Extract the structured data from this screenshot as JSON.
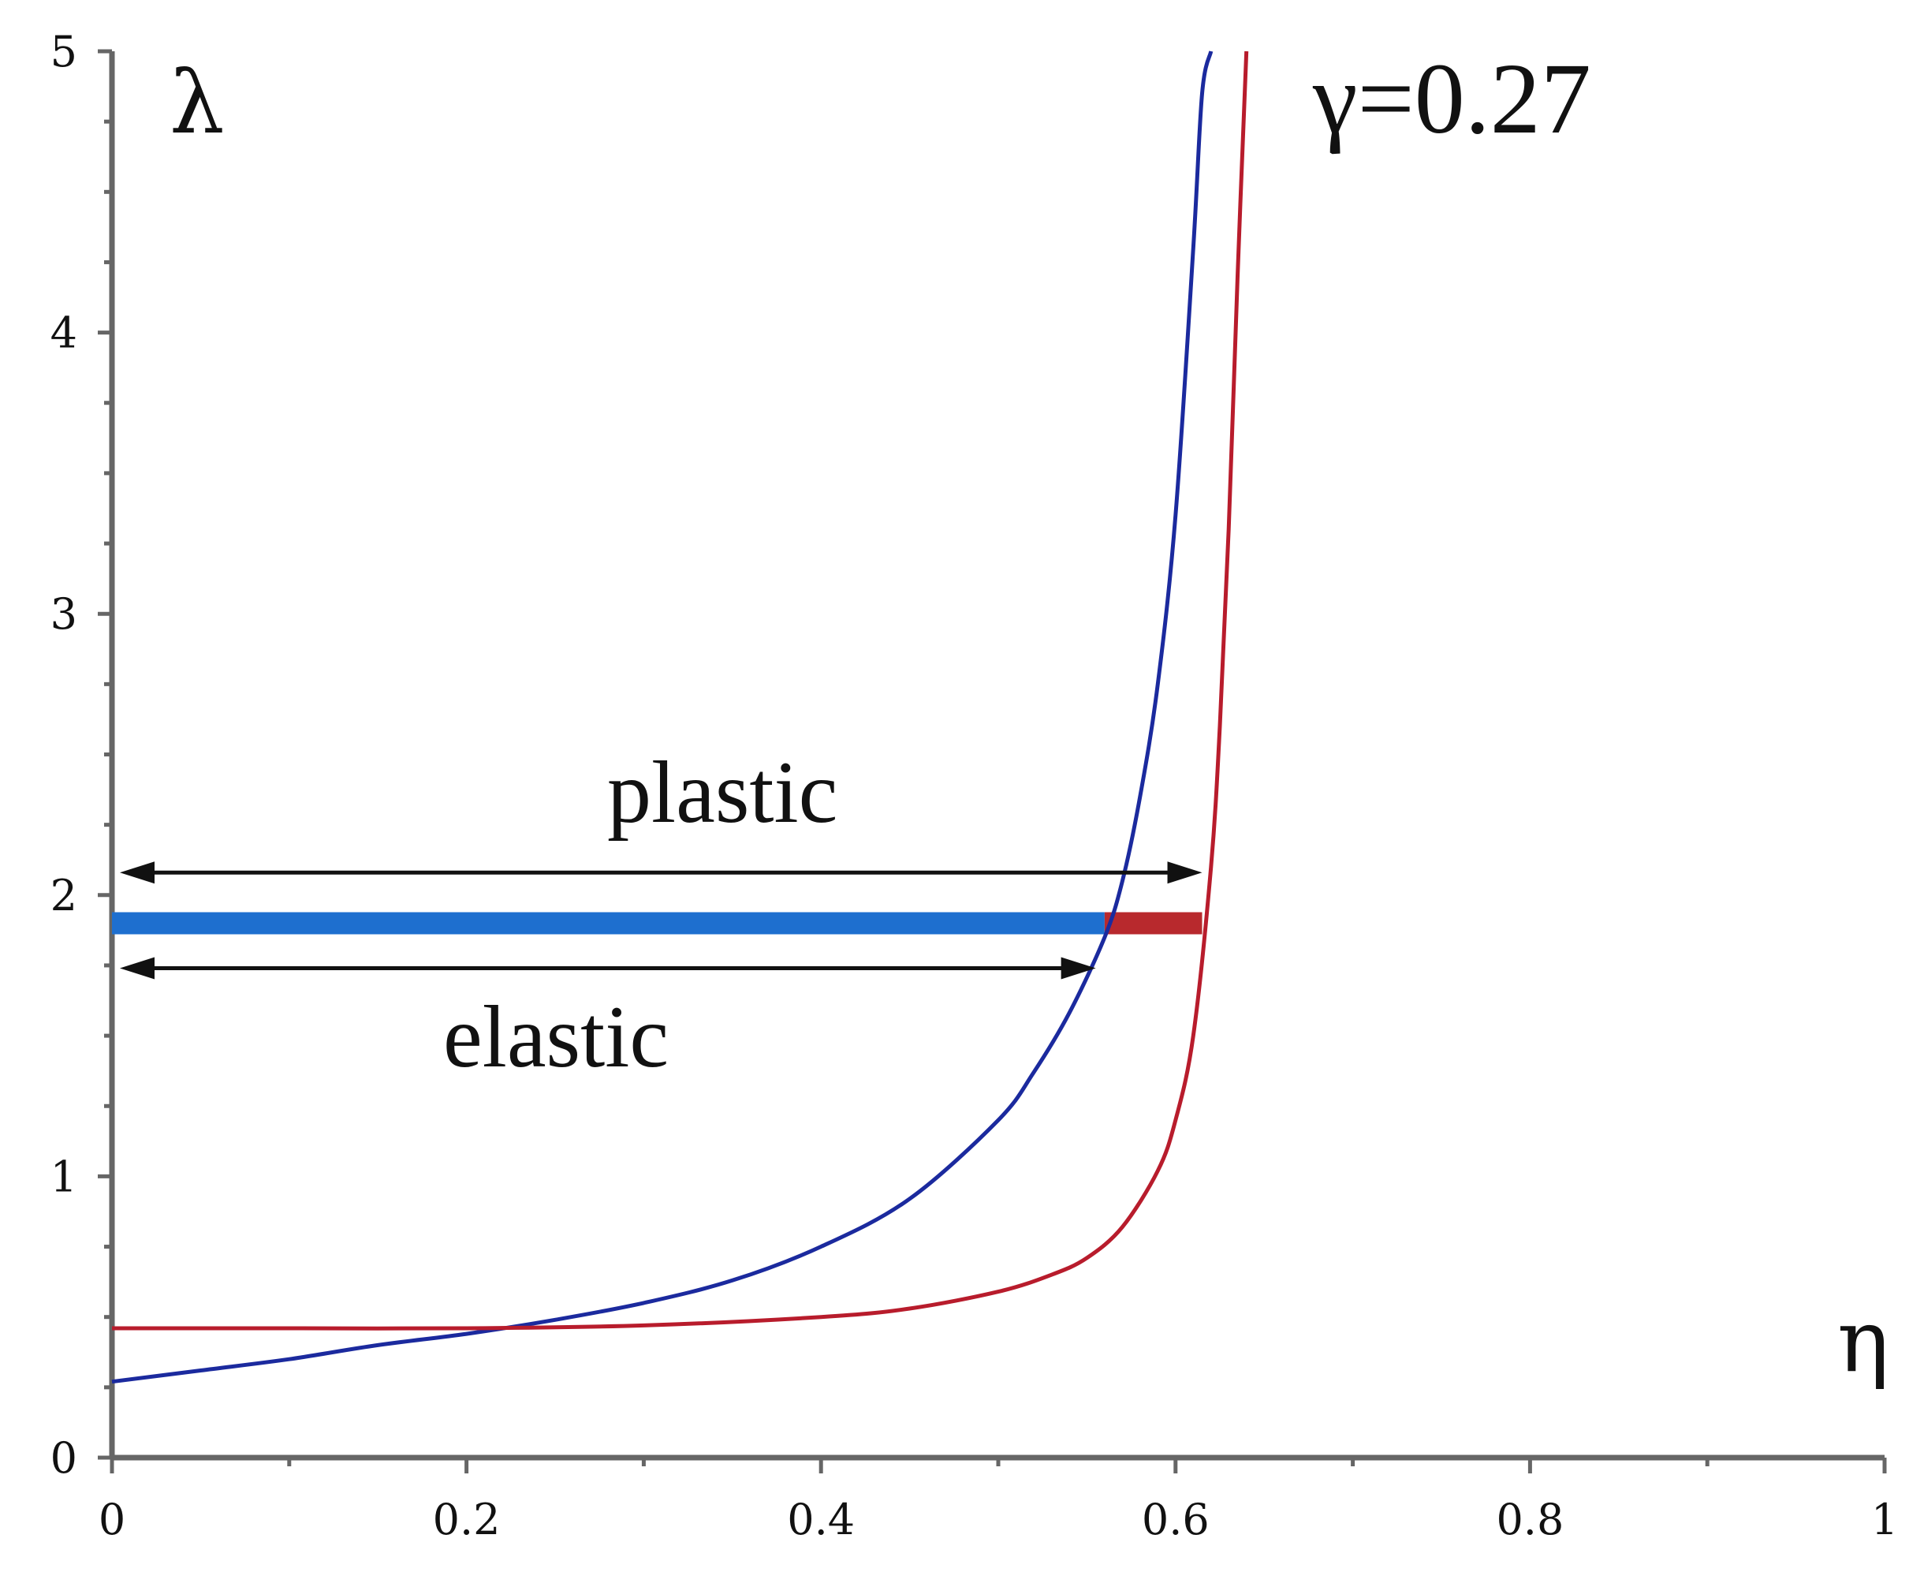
{
  "chart_data": {
    "type": "line",
    "title": "",
    "xlabel": "η",
    "ylabel": "λ",
    "xlim": [
      0,
      1
    ],
    "ylim": [
      0,
      5
    ],
    "x_ticks": [
      "0",
      "0.2",
      "0.4",
      "0.6",
      "0.8",
      "1"
    ],
    "y_ticks": [
      "0",
      "1",
      "2",
      "3",
      "4",
      "5"
    ],
    "grid": false,
    "legend": "none",
    "annotations": {
      "parameter": "γ=0.27",
      "plastic": "plastic",
      "elastic": "elastic"
    },
    "series": [
      {
        "color": "#1b2a9e",
        "x": [
          0,
          0.05,
          0.1,
          0.15,
          0.2,
          0.25,
          0.3,
          0.35,
          0.4,
          0.45,
          0.5,
          0.52,
          0.54,
          0.56,
          0.57,
          0.58,
          0.59,
          0.6,
          0.61,
          0.615,
          0.62
        ],
        "y": [
          0.27,
          0.31,
          0.35,
          0.4,
          0.44,
          0.49,
          0.55,
          0.63,
          0.75,
          0.92,
          1.2,
          1.37,
          1.58,
          1.85,
          2.05,
          2.35,
          2.75,
          3.35,
          4.3,
          4.85,
          5.0
        ]
      },
      {
        "color": "#b81c2c",
        "x": [
          0,
          0.1,
          0.2,
          0.3,
          0.4,
          0.45,
          0.5,
          0.53,
          0.55,
          0.57,
          0.59,
          0.6,
          0.61,
          0.62,
          0.625,
          0.63,
          0.635,
          0.64
        ],
        "y": [
          0.46,
          0.46,
          0.46,
          0.47,
          0.5,
          0.53,
          0.59,
          0.65,
          0.71,
          0.82,
          1.02,
          1.2,
          1.5,
          2.1,
          2.6,
          3.3,
          4.2,
          5.0
        ]
      }
    ],
    "regions": [
      {
        "label": "plastic",
        "x_start": 0,
        "x_end": 0.615,
        "y": 2.08
      },
      {
        "label": "elastic",
        "x_start": 0,
        "x_end": 0.555,
        "y": 1.74
      }
    ],
    "bands": [
      {
        "color": "#1e6fcf",
        "x_start": 0,
        "x_end": 0.56,
        "y": 1.9
      },
      {
        "color": "#b8292d",
        "x_start": 0.56,
        "x_end": 0.615,
        "y": 1.9
      }
    ],
    "axis_color": "#666666"
  }
}
